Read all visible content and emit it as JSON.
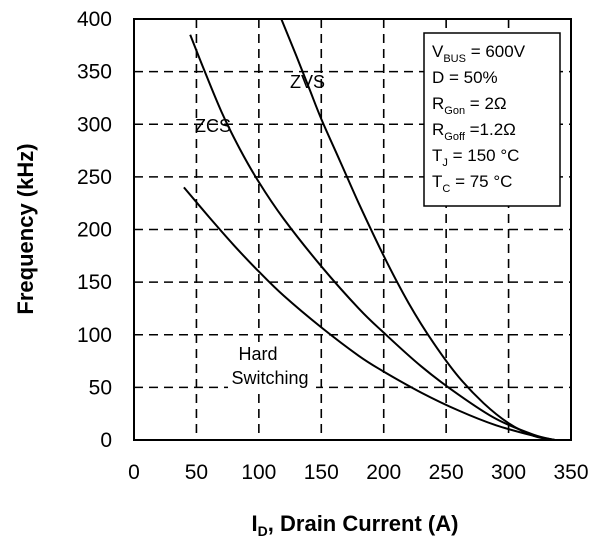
{
  "chart_data": {
    "type": "line",
    "xlabel": {
      "main": "I",
      "sub": "D",
      "rest": ", Drain Current (A)"
    },
    "ylabel": "Frequency (kHz)",
    "xlim": [
      0,
      350
    ],
    "ylim": [
      0,
      400
    ],
    "xticks": [
      "0",
      "50",
      "100",
      "150",
      "200",
      "250",
      "300",
      "350"
    ],
    "yticks": [
      "0",
      "50",
      "100",
      "150",
      "200",
      "250",
      "300",
      "350",
      "400"
    ],
    "grid": true,
    "series": [
      {
        "name": "Hard Switching",
        "x": [
          40,
          60,
          80,
          100,
          120,
          150,
          180,
          200,
          230,
          260,
          290,
          320,
          337
        ],
        "y": [
          240,
          212,
          185,
          160,
          137,
          107,
          80,
          65,
          45,
          28,
          14,
          4,
          0
        ]
      },
      {
        "name": "ZCS",
        "x": [
          45,
          55,
          70,
          85,
          100,
          120,
          150,
          180,
          200,
          230,
          260,
          290,
          320,
          337
        ],
        "y": [
          385,
          355,
          312,
          276,
          245,
          210,
          165,
          125,
          102,
          70,
          43,
          20,
          5,
          0
        ]
      },
      {
        "name": "ZVS",
        "x": [
          118,
          130,
          140,
          150,
          165,
          180,
          200,
          220,
          240,
          260,
          280,
          300,
          320,
          337
        ],
        "y": [
          400,
          365,
          335,
          305,
          265,
          225,
          175,
          130,
          92,
          60,
          35,
          16,
          4,
          0
        ]
      }
    ],
    "annotations": {
      "zvs": "ZVS",
      "zcs": "ZCS",
      "hard_1": "Hard",
      "hard_2": "Switching"
    },
    "legend_box": {
      "placement": "top-right",
      "lines": [
        [
          {
            "t": "V",
            "s": false
          },
          {
            "t": "BUS",
            "s": true
          },
          {
            "t": " = 600V",
            "s": false
          }
        ],
        [
          {
            "t": "D = 50%",
            "s": false
          }
        ],
        [
          {
            "t": "R",
            "s": false
          },
          {
            "t": "Gon",
            "s": true
          },
          {
            "t": " = 2Ω",
            "s": false
          }
        ],
        [
          {
            "t": "R",
            "s": false
          },
          {
            "t": "Goff",
            "s": true
          },
          {
            "t": " =1.2Ω",
            "s": false
          }
        ],
        [
          {
            "t": "T",
            "s": false
          },
          {
            "t": "J",
            "s": true
          },
          {
            "t": " = 150 °C",
            "s": false
          }
        ],
        [
          {
            "t": "T",
            "s": false
          },
          {
            "t": "C",
            "s": true
          },
          {
            "t": " = 75 °C",
            "s": false
          }
        ]
      ]
    }
  }
}
